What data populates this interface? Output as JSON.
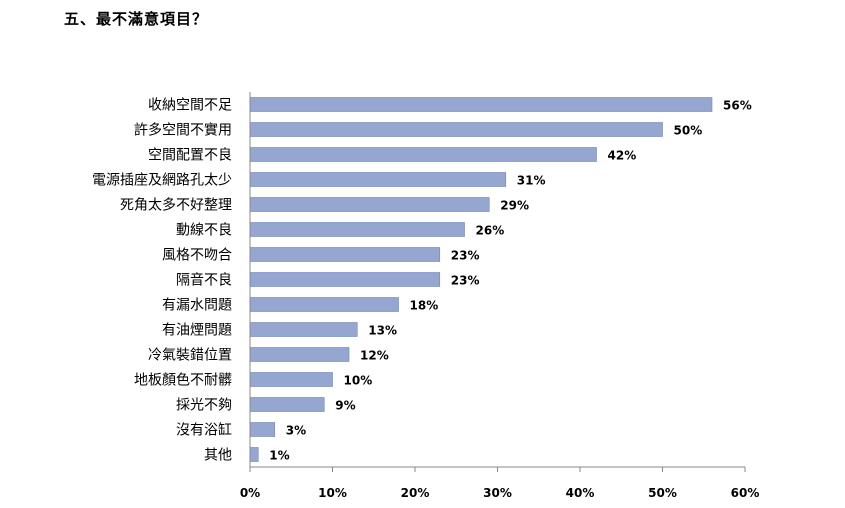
{
  "page": {
    "title": "五、最不滿意項目？"
  },
  "chart_data": {
    "type": "bar",
    "orientation": "horizontal",
    "categories": [
      "收納空間不足",
      "許多空間不實用",
      "空間配置不良",
      "電源插座及網路孔太少",
      "死角太多不好整理",
      "動線不良",
      "風格不吻合",
      "隔音不良",
      "有漏水問題",
      "有油煙問題",
      "冷氣裝錯位置",
      "地板顏色不耐髒",
      "採光不夠",
      "沒有浴缸",
      "其他"
    ],
    "values": [
      56,
      50,
      42,
      31,
      29,
      26,
      23,
      23,
      18,
      13,
      12,
      10,
      9,
      3,
      1
    ],
    "value_labels": [
      "56%",
      "50%",
      "42%",
      "31%",
      "29%",
      "26%",
      "23%",
      "23%",
      "18%",
      "13%",
      "12%",
      "10%",
      "9%",
      "3%",
      "1%"
    ],
    "x_ticks": [
      "0%",
      "10%",
      "20%",
      "30%",
      "40%",
      "50%",
      "60%"
    ],
    "xlim": [
      0,
      60
    ],
    "grid": false,
    "bar_color": "#95A7D1",
    "bar_edge_color": "#6F83B5"
  }
}
